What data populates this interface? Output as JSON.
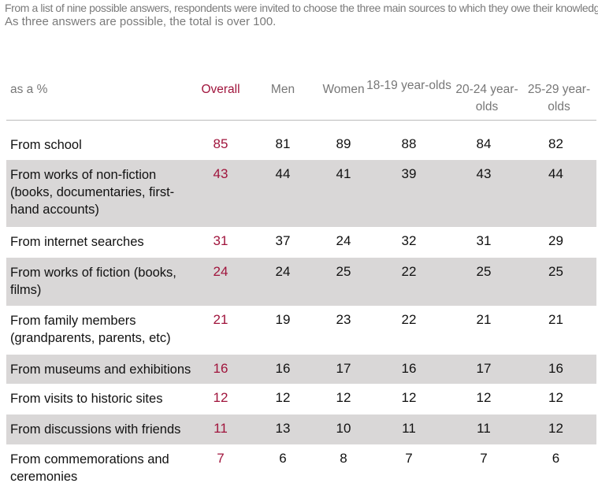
{
  "intro": {
    "line1": "From a list of nine possible answers, respondents were invited to choose the three main sources to which they owe their knowledge on this subject.",
    "line2": "As three answers are possible, the total is over 100."
  },
  "table": {
    "header": [
      "as a %",
      "Overall",
      "Men",
      "Women",
      "18-19 year-olds",
      "20-24 year-olds",
      "25-29 year-olds"
    ],
    "rows": [
      [
        "From school",
        85,
        81,
        89,
        88,
        84,
        82
      ],
      [
        "From works of non-fiction (books, documentaries, first-hand accounts)",
        43,
        44,
        41,
        39,
        43,
        44
      ],
      [
        "From internet searches",
        31,
        37,
        24,
        32,
        31,
        29
      ],
      [
        "From works of fiction (books, films)",
        24,
        24,
        25,
        22,
        25,
        25
      ],
      [
        "From family members (grandparents, parents, etc)",
        21,
        19,
        23,
        22,
        21,
        21
      ],
      [
        "From museums and exhibitions",
        16,
        16,
        17,
        16,
        17,
        16
      ],
      [
        "From visits to historic sites",
        12,
        12,
        12,
        12,
        12,
        12
      ],
      [
        "From discussions with friends",
        11,
        13,
        10,
        11,
        11,
        12
      ],
      [
        "From commemorations and ceremonies",
        7,
        6,
        8,
        7,
        7,
        6
      ]
    ]
  }
}
